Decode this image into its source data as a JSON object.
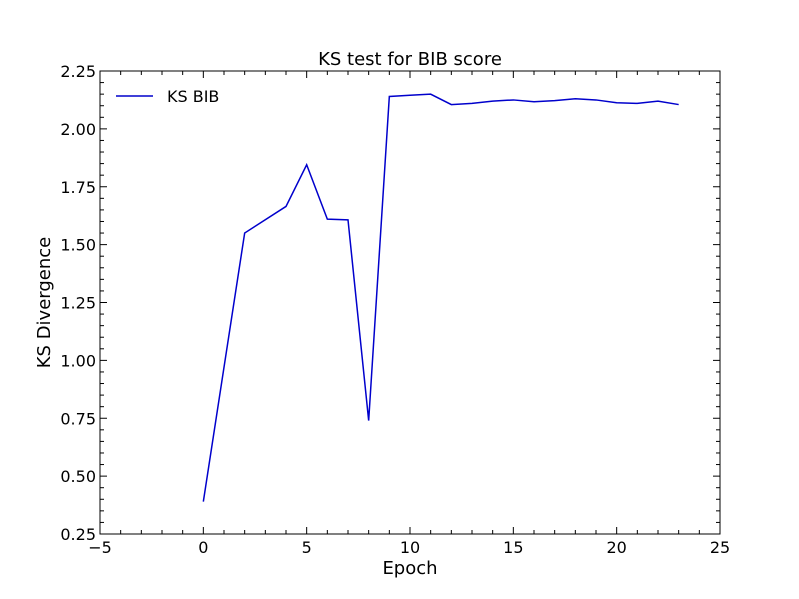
{
  "chart_data": {
    "type": "line",
    "title": "KS test for BIB score",
    "xlabel": "Epoch",
    "ylabel": "KS Divergence",
    "xlim": [
      -5,
      25
    ],
    "ylim": [
      0.25,
      2.25
    ],
    "xticks": [
      -5,
      0,
      5,
      10,
      15,
      20,
      25
    ],
    "xtick_labels": [
      "−5",
      "0",
      "5",
      "10",
      "15",
      "20",
      "25"
    ],
    "yticks": [
      0.25,
      0.5,
      0.75,
      1.0,
      1.25,
      1.5,
      1.75,
      2.0,
      2.25
    ],
    "ytick_labels": [
      "0.25",
      "0.50",
      "0.75",
      "1.00",
      "1.25",
      "1.50",
      "1.75",
      "2.00",
      "2.25"
    ],
    "grid": false,
    "legend": "top-left",
    "series": [
      {
        "name": "KS BIB",
        "color": "#0000cc",
        "x": [
          0,
          2,
          4,
          5,
          6,
          7,
          8,
          9,
          10,
          11,
          12,
          13,
          14,
          15,
          16,
          17,
          18,
          19,
          20,
          21,
          22,
          23
        ],
        "y": [
          0.39,
          1.55,
          1.665,
          1.845,
          1.61,
          1.607,
          0.74,
          2.14,
          2.145,
          2.15,
          2.105,
          2.11,
          2.12,
          2.125,
          2.117,
          2.122,
          2.13,
          2.125,
          2.113,
          2.11,
          2.12,
          2.105
        ]
      }
    ]
  }
}
